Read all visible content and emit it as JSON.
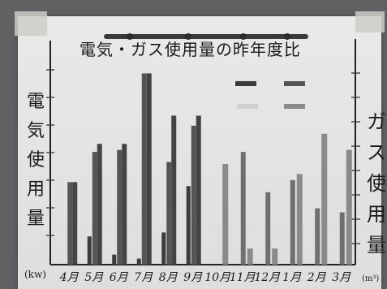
{
  "poster": {
    "title": "電気・ガス使用量の昨年度比",
    "left_axis_label": "電気使用量",
    "right_axis_label": "ガス使用量"
  },
  "chart_data": {
    "type": "bar",
    "title": "電気・ガス使用量の昨年度比",
    "categories": [
      "4月",
      "5月",
      "6月",
      "7月",
      "8月",
      "9月",
      "10月",
      "11月",
      "12月",
      "1月",
      "2月",
      "3月"
    ],
    "xlabel": "",
    "ylabel_left": "電気使用量",
    "ylabel_right": "ガス使用量",
    "unit_left": "(kw)",
    "unit_right": "(m³)",
    "y_scale": "relative height, 0 = baseline, 100 = top of axis",
    "ylim": [
      0,
      100
    ],
    "series": [
      {
        "axis": "left",
        "color": "#3b3b3b",
        "values": [
          null,
          14,
          5,
          3,
          16,
          39,
          null,
          null,
          null,
          null,
          null,
          null
        ]
      },
      {
        "axis": "left",
        "color": "#555555",
        "values": [
          41,
          56,
          57,
          95,
          51,
          69,
          null,
          null,
          null,
          null,
          null,
          null
        ]
      },
      {
        "axis": "left",
        "color": "#444444",
        "values": [
          41,
          60,
          60,
          95,
          74,
          74,
          null,
          null,
          null,
          null,
          null,
          null
        ]
      },
      {
        "axis": "right",
        "color": "#6f6f6f",
        "values": [
          null,
          null,
          null,
          null,
          null,
          null,
          null,
          56,
          36,
          42,
          28,
          26
        ]
      },
      {
        "axis": "right",
        "color": "#8a8a8a",
        "values": [
          null,
          null,
          null,
          null,
          null,
          null,
          50,
          8,
          8,
          45,
          65,
          57
        ]
      }
    ],
    "legend_position": "top-right",
    "grid": false
  }
}
